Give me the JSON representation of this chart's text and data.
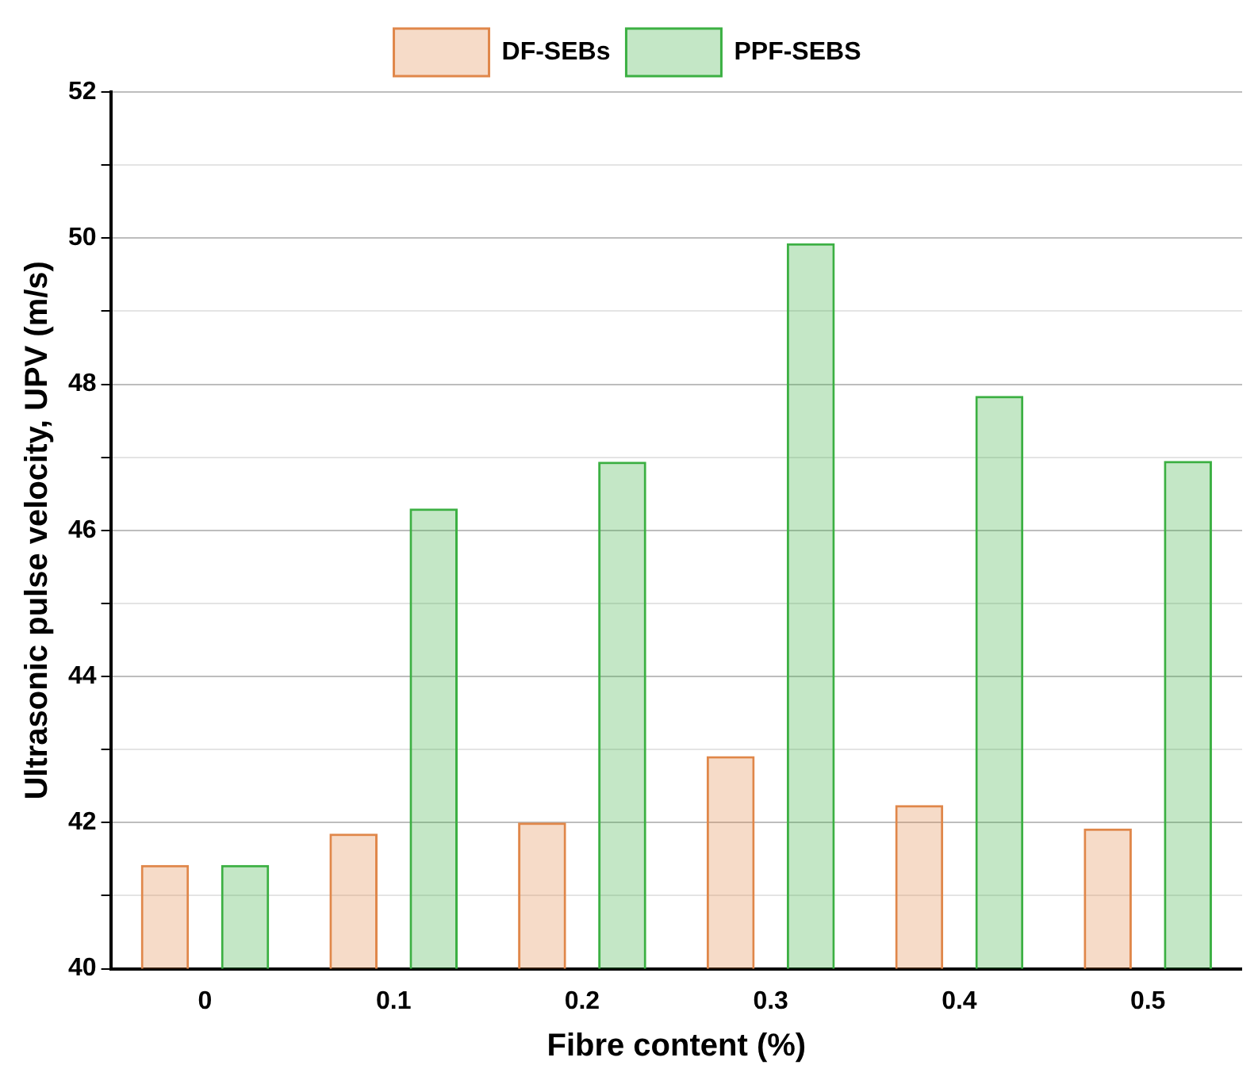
{
  "chart_data": {
    "type": "bar",
    "xlabel": "Fibre content (%)",
    "ylabel": "Ultrasonic pulse velocity, UPV (m/s)",
    "categories": [
      "0",
      "0.1",
      "0.2",
      "0.3",
      "0.4",
      "0.5"
    ],
    "series": [
      {
        "name": "DF-SEBs",
        "color": "#e0874a",
        "values": [
          41.42,
          41.85,
          42.0,
          42.91,
          42.24,
          41.92
        ]
      },
      {
        "name": "PPF-SEBS",
        "color": "#3cb043",
        "values": [
          41.42,
          46.3,
          46.94,
          49.93,
          47.84,
          46.95
        ]
      }
    ],
    "ylim": [
      40,
      52
    ],
    "yticks": [
      40,
      {
        "value": 41,
        "label": null
      },
      42,
      {
        "value": 43,
        "label": null
      },
      44,
      {
        "value": 45,
        "label": null
      },
      46,
      {
        "value": 47,
        "label": null
      },
      48,
      {
        "value": 49,
        "label": null
      },
      50,
      {
        "value": 51,
        "label": null
      },
      52
    ],
    "grid": "y",
    "legend": "top"
  }
}
